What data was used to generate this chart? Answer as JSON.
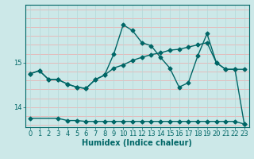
{
  "xlabel": "Humidex (Indice chaleur)",
  "bg_color": "#cce8e8",
  "line_color": "#006666",
  "grid_color_h": "#e8b4b4",
  "grid_color_v": "#b4d8d8",
  "xlim": [
    -0.5,
    23.5
  ],
  "ylim": [
    13.55,
    16.3
  ],
  "yticks": [
    14,
    15
  ],
  "xticks": [
    0,
    1,
    2,
    3,
    4,
    5,
    6,
    7,
    8,
    9,
    10,
    11,
    12,
    13,
    14,
    15,
    16,
    17,
    18,
    19,
    20,
    21,
    22,
    23
  ],
  "line_flat_x": [
    0,
    3,
    4,
    5,
    6,
    7,
    8,
    9,
    10,
    11,
    12,
    13,
    14,
    15,
    16,
    17,
    18,
    19,
    20,
    21,
    22,
    23
  ],
  "line_flat_y": [
    13.75,
    13.75,
    13.7,
    13.7,
    13.68,
    13.68,
    13.68,
    13.68,
    13.68,
    13.68,
    13.68,
    13.68,
    13.68,
    13.68,
    13.68,
    13.68,
    13.68,
    13.68,
    13.68,
    13.68,
    13.68,
    13.62
  ],
  "line_diag_x": [
    0,
    1,
    2,
    3,
    4,
    5,
    6,
    7,
    8,
    9,
    10,
    11,
    12,
    13,
    14,
    15,
    16,
    17,
    18,
    19,
    20,
    21,
    22,
    23
  ],
  "line_diag_y": [
    14.75,
    14.82,
    14.62,
    14.62,
    14.52,
    14.45,
    14.42,
    14.62,
    14.72,
    14.88,
    14.95,
    15.05,
    15.12,
    15.18,
    15.22,
    15.28,
    15.3,
    15.35,
    15.4,
    15.45,
    15.0,
    14.85,
    14.85,
    14.85
  ],
  "line_jagged_x": [
    0,
    1,
    2,
    3,
    4,
    5,
    6,
    7,
    8,
    9,
    10,
    11,
    12,
    13,
    14,
    15,
    16,
    17,
    18,
    19,
    20,
    21,
    22,
    23
  ],
  "line_jagged_y": [
    14.75,
    14.82,
    14.62,
    14.62,
    14.52,
    14.45,
    14.42,
    14.62,
    14.72,
    15.2,
    15.85,
    15.72,
    15.45,
    15.38,
    15.12,
    14.88,
    14.45,
    14.55,
    15.15,
    15.65,
    15.0,
    14.85,
    14.85,
    13.62
  ],
  "marker_size": 2.5,
  "linewidth": 1.0,
  "label_fontsize": 7,
  "tick_fontsize": 6
}
